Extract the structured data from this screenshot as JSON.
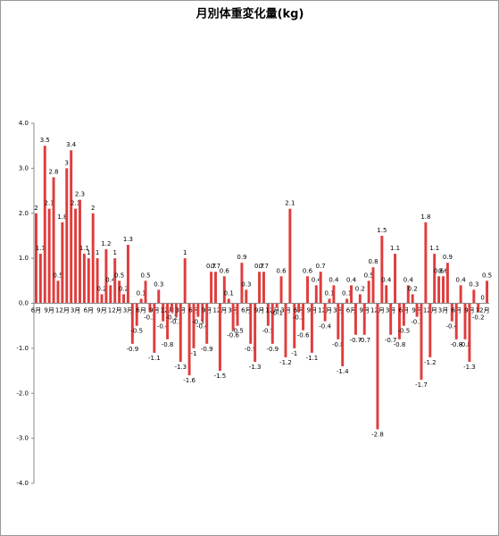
{
  "chart_data": {
    "type": "bar",
    "title": "月別体重変化量(kg)",
    "color": "#e03c3c",
    "grid": false,
    "ylim": [
      -4,
      4
    ],
    "yticks": [
      {
        "value": 4,
        "label": "4.0"
      },
      {
        "value": 3,
        "label": "3.0"
      },
      {
        "value": 2,
        "label": "2.0"
      },
      {
        "value": 1,
        "label": "1.0"
      },
      {
        "value": 0,
        "label": "0.0"
      },
      {
        "value": -1,
        "label": "-1.0"
      },
      {
        "value": -2,
        "label": "-2.0"
      },
      {
        "value": -3,
        "label": "-3.0"
      },
      {
        "value": -4,
        "label": "-4.0"
      }
    ],
    "categories": [
      "6月",
      null,
      null,
      "9月",
      null,
      null,
      "12月",
      null,
      null,
      "3月",
      null,
      null,
      "6月",
      null,
      null,
      "9月",
      null,
      null,
      "12月",
      null,
      null,
      "3月",
      null,
      null,
      "6月",
      null,
      null,
      "9月",
      null,
      null,
      "12月",
      null,
      null,
      "3月",
      null,
      null,
      "6月",
      null,
      null,
      "9月",
      null,
      null,
      "12月",
      null,
      null,
      "3月",
      null,
      null,
      "6月",
      null,
      null,
      "9月",
      null,
      null,
      "12月",
      null,
      null,
      "3月",
      null,
      null,
      "6月",
      null,
      null,
      "9月",
      null,
      null,
      "12月",
      null,
      null,
      "3月",
      null,
      null,
      "6月",
      null,
      null,
      "9月",
      null,
      null,
      "12月",
      null,
      null,
      "3月",
      null,
      null,
      "6月",
      null,
      null,
      "9月",
      null,
      null,
      "12月",
      null,
      null,
      "3月",
      null,
      null,
      "6月",
      null,
      null,
      "9月",
      null,
      null,
      "12月",
      null
    ],
    "values": [
      2.0,
      1.1,
      3.5,
      2.1,
      2.8,
      0.5,
      1.8,
      3.0,
      3.4,
      2.1,
      2.3,
      1.1,
      1.0,
      2.0,
      1.0,
      0.2,
      1.2,
      0.4,
      1.0,
      0.5,
      0.2,
      1.3,
      -0.9,
      -0.5,
      0.1,
      0.5,
      -0.2,
      -1.1,
      0.3,
      -0.4,
      -0.8,
      -0.2,
      -0.3,
      -1.3,
      1.0,
      -1.6,
      -1.0,
      -0.3,
      -0.4,
      -0.9,
      0.7,
      0.7,
      -1.5,
      0.6,
      0.1,
      -0.6,
      -0.5,
      0.9,
      0.3,
      -0.9,
      -1.3,
      0.7,
      0.7,
      -0.5,
      -0.9,
      -0.1,
      0.6,
      -1.2,
      2.1,
      -1.0,
      -0.2,
      -0.6,
      0.6,
      -1.1,
      0.4,
      0.7,
      -0.4,
      0.1,
      0.4,
      -0.8,
      -1.4,
      0.1,
      0.4,
      -0.7,
      0.2,
      -0.7,
      0.5,
      0.8,
      -2.8,
      1.5,
      0.4,
      -0.7,
      1.1,
      -0.8,
      -0.5,
      0.4,
      0.2,
      -0.3,
      -1.7,
      1.8,
      -1.2,
      1.1,
      0.6,
      0.6,
      0.9,
      -0.4,
      -0.8,
      0.4,
      -0.8,
      -1.3,
      0.3,
      -0.2,
      0.0,
      0.5
    ]
  }
}
